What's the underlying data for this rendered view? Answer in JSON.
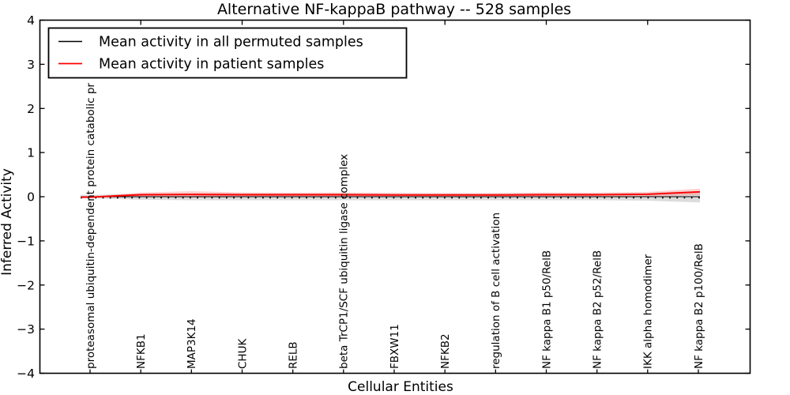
{
  "figure": {
    "background": "#ffffff"
  },
  "chart_data": {
    "type": "line",
    "title": "Alternative NF-kappaB pathway -- 528 samples",
    "xlabel": "Cellular Entities",
    "ylabel": "Inferred Activity",
    "ylim": [
      -4,
      4
    ],
    "yticks": [
      4,
      3,
      2,
      1,
      0,
      -1,
      -2,
      -3,
      -4
    ],
    "grid": false,
    "legend_position": "upper left",
    "categories": [
      "proteasomal ubiquitin-dependent protein catabolic pr",
      "NFKB1",
      "MAP3K14",
      "CHUK",
      "RELB",
      "beta TrCP1/SCF ubiquitin ligase complex",
      "FBXW11",
      "NFKB2",
      "regulation of B cell activation",
      "NF kappa B1 p50/RelB",
      "NF kappa B2 p52/RelB",
      "IKK alpha homodimer",
      "NF kappa B2 p100/RelB"
    ],
    "series": [
      {
        "name": "Mean activity in all permuted samples",
        "color": "#000000",
        "linestyle": "dotted",
        "values": [
          0.0,
          0.0,
          0.0,
          0.0,
          0.0,
          0.0,
          0.0,
          0.0,
          0.0,
          0.0,
          0.0,
          0.0,
          0.0
        ],
        "band_color": "#bfbfbf",
        "band_opacity": 0.55,
        "band_half_width": [
          0.04,
          0.07,
          0.08,
          0.08,
          0.08,
          0.08,
          0.08,
          0.08,
          0.08,
          0.08,
          0.08,
          0.09,
          0.13
        ]
      },
      {
        "name": "Mean activity in patient samples",
        "color": "#ff0000",
        "linestyle": "solid",
        "values": [
          -0.01,
          0.045,
          0.05,
          0.045,
          0.045,
          0.045,
          0.04,
          0.04,
          0.04,
          0.045,
          0.045,
          0.055,
          0.11
        ],
        "band_color": "#ff8080",
        "band_opacity": 0.35,
        "band_half_width": [
          0.015,
          0.05,
          0.075,
          0.05,
          0.045,
          0.05,
          0.045,
          0.04,
          0.04,
          0.05,
          0.045,
          0.055,
          0.075
        ]
      }
    ]
  }
}
